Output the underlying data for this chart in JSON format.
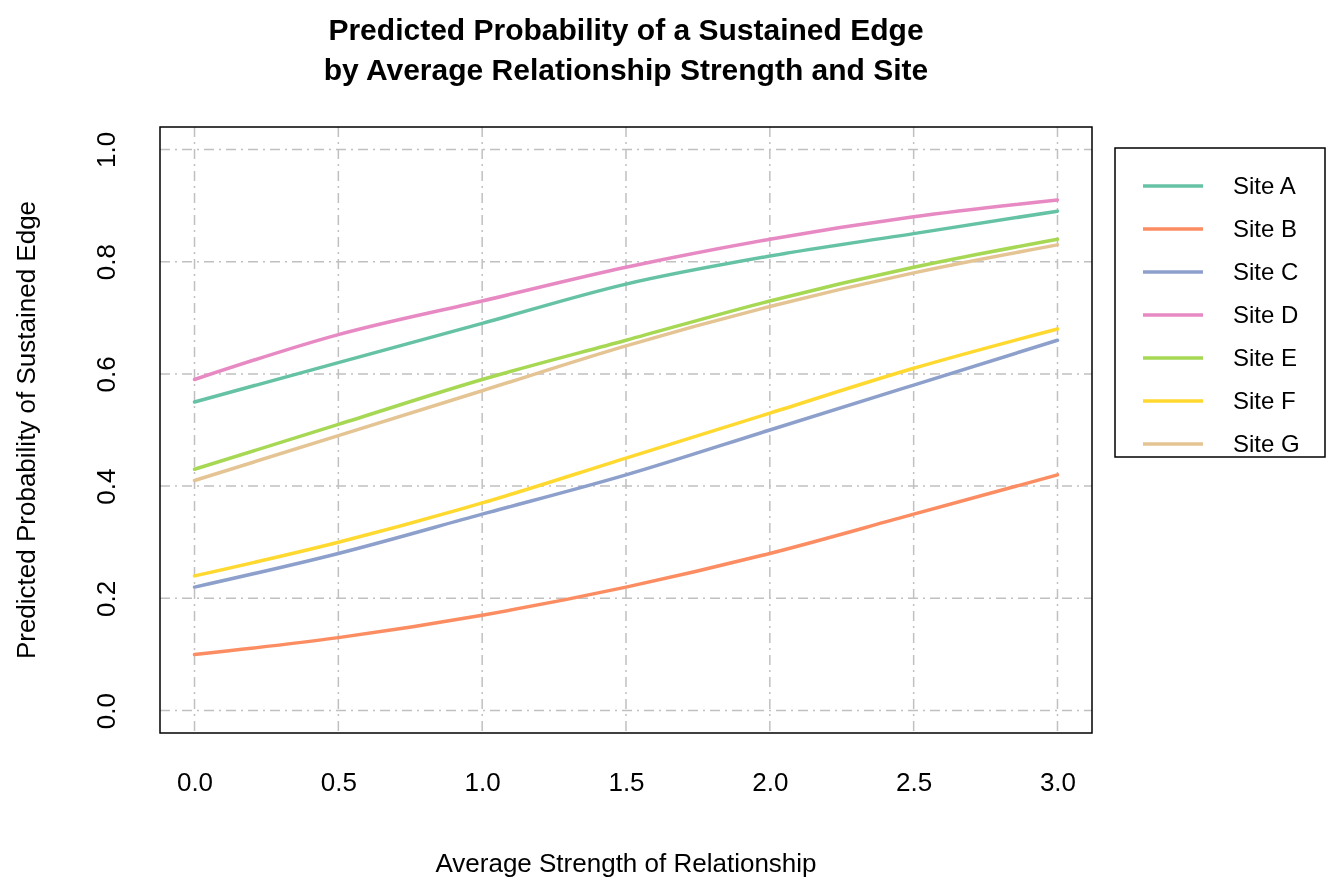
{
  "chart_data": {
    "type": "line",
    "title": "Predicted Probability of a Sustained Edge\nby Average Relationship Strength and Site",
    "xlabel": "Average Strength of Relationship",
    "ylabel": "Predicted Probability of Sustained Edge",
    "x": [
      0,
      0.5,
      1,
      1.5,
      2,
      2.5,
      3
    ],
    "series": [
      {
        "name": "Site A",
        "color": "#66c2a5",
        "values": [
          0.55,
          0.62,
          0.69,
          0.76,
          0.81,
          0.85,
          0.89
        ]
      },
      {
        "name": "Site B",
        "color": "#fc8d62",
        "values": [
          0.1,
          0.13,
          0.17,
          0.22,
          0.28,
          0.35,
          0.42
        ]
      },
      {
        "name": "Site C",
        "color": "#8da0cb",
        "values": [
          0.22,
          0.28,
          0.35,
          0.42,
          0.5,
          0.58,
          0.66
        ]
      },
      {
        "name": "Site D",
        "color": "#e78ac3",
        "values": [
          0.59,
          0.67,
          0.73,
          0.79,
          0.84,
          0.88,
          0.91
        ]
      },
      {
        "name": "Site E",
        "color": "#a6d854",
        "values": [
          0.43,
          0.51,
          0.59,
          0.66,
          0.73,
          0.79,
          0.84
        ]
      },
      {
        "name": "Site F",
        "color": "#ffd92f",
        "values": [
          0.24,
          0.3,
          0.37,
          0.45,
          0.53,
          0.61,
          0.68
        ]
      },
      {
        "name": "Site G",
        "color": "#e5c494",
        "values": [
          0.41,
          0.49,
          0.57,
          0.65,
          0.72,
          0.78,
          0.83
        ]
      }
    ],
    "xlim": [
      -0.12,
      3.12
    ],
    "ylim": [
      -0.04,
      1.04
    ],
    "xticks": [
      {
        "value": 0,
        "label": "0.0"
      },
      {
        "value": 0.5,
        "label": "0.5"
      },
      {
        "value": 1,
        "label": "1.0"
      },
      {
        "value": 1.5,
        "label": "1.5"
      },
      {
        "value": 2,
        "label": "2.0"
      },
      {
        "value": 2.5,
        "label": "2.5"
      },
      {
        "value": 3,
        "label": "3.0"
      }
    ],
    "yticks": [
      {
        "value": 0,
        "label": "0.0"
      },
      {
        "value": 0.2,
        "label": "0.2"
      },
      {
        "value": 0.4,
        "label": "0.4"
      },
      {
        "value": 0.6,
        "label": "0.6"
      },
      {
        "value": 0.8,
        "label": "0.8"
      },
      {
        "value": 1,
        "label": "1.0"
      }
    ],
    "grid": true,
    "legend": "right",
    "line_style": "solid",
    "marker": "none"
  }
}
